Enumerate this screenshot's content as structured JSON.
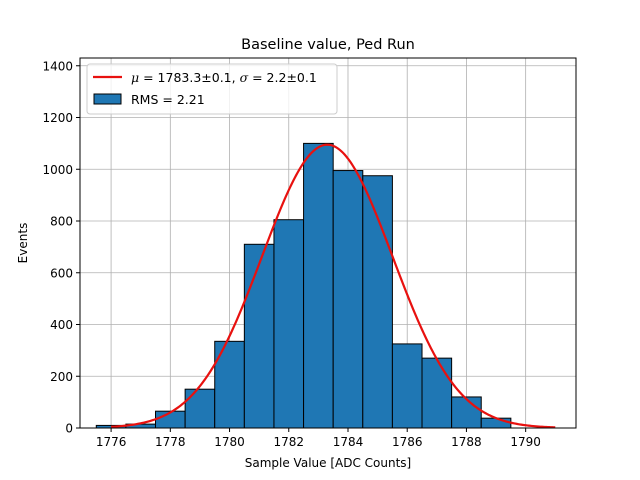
{
  "chart_data": {
    "type": "bar",
    "title": "Baseline value, Ped Run",
    "xlabel": "Sample Value [ADC Counts]",
    "ylabel": "Events",
    "xlim": [
      1774.95,
      1791.7
    ],
    "ylim": [
      0,
      1430
    ],
    "xticks": [
      1776,
      1778,
      1780,
      1782,
      1784,
      1786,
      1788,
      1790
    ],
    "yticks": [
      0,
      200,
      400,
      600,
      800,
      1000,
      1200,
      1400
    ],
    "grid": true,
    "legend_placement": "top-left",
    "bins": {
      "edges": [
        1775.5,
        1776.5,
        1777.5,
        1778.5,
        1779.5,
        1780.5,
        1781.5,
        1782.5,
        1783.5,
        1784.5,
        1785.5,
        1786.5,
        1787.5,
        1788.5,
        1789.5,
        1790.5
      ],
      "counts": [
        10,
        15,
        65,
        150,
        335,
        710,
        805,
        1100,
        995,
        975,
        325,
        270,
        120,
        38,
        0
      ],
      "color": "#1f77b4",
      "edgecolor": "#000000"
    },
    "fit": {
      "mu": 1783.3,
      "sigma": 2.2,
      "peak": 1095,
      "x_range": [
        1776,
        1791
      ],
      "color": "#e8110f"
    },
    "legend": [
      {
        "kind": "line",
        "color": "#e8110f",
        "label_prefix": "μ",
        "label_mid": " = 1783.3±0.1, ",
        "label_sigma": "σ",
        "label_suffix": " = 2.2±0.1"
      },
      {
        "kind": "patch",
        "color": "#1f77b4",
        "label": "RMS = 2.21"
      }
    ]
  }
}
